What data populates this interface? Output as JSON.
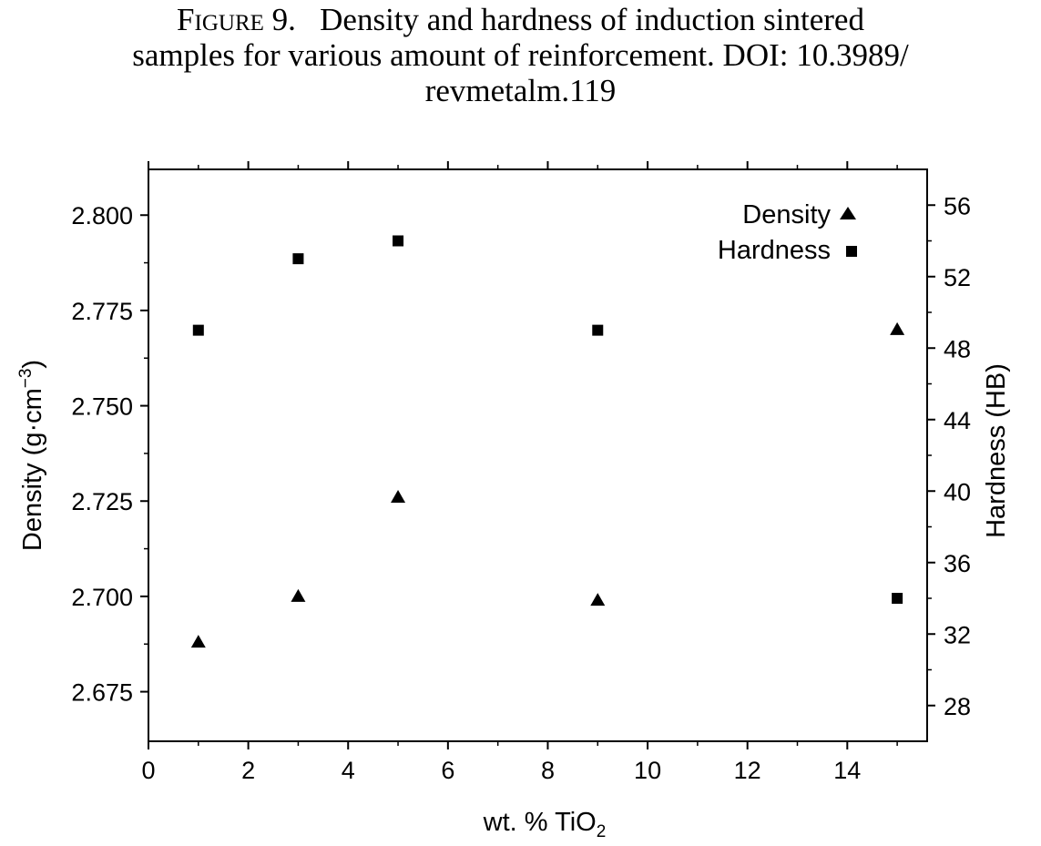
{
  "figure": {
    "label": "Figure 9.",
    "caption_line1": "Density and hardness of induction sintered",
    "caption_line2": "samples for various amount of reinforcement. DOI: 10.3989/",
    "caption_line3": "revmetalm.119"
  },
  "chart_data": {
    "type": "scatter",
    "x_label": "wt. % TiO",
    "x_label_sub": "2",
    "y_label_left": "Density (g·cm",
    "y_label_left_sup": "−3",
    "y_label_left_close": ")",
    "y_label_right": "Hardness (HB)",
    "x_range": [
      0,
      15.6
    ],
    "x_ticks": [
      0,
      2,
      4,
      6,
      8,
      10,
      12,
      14
    ],
    "y_left_range": [
      2.662,
      2.812
    ],
    "y_left_ticks": [
      "2.675",
      "2.700",
      "2.725",
      "2.750",
      "2.775",
      "2.800"
    ],
    "y_right_range": [
      26,
      58
    ],
    "y_right_ticks": [
      28,
      32,
      36,
      40,
      44,
      48,
      52,
      56
    ],
    "grid": false,
    "legend_position": "top-right",
    "series": [
      {
        "name": "Density",
        "marker": "triangle",
        "axis": "left",
        "x": [
          1,
          3,
          5,
          9,
          15
        ],
        "y": [
          2.688,
          2.7,
          2.726,
          2.699,
          2.77
        ]
      },
      {
        "name": "Hardness",
        "marker": "square",
        "axis": "right",
        "x": [
          1,
          3,
          5,
          9,
          15
        ],
        "y": [
          49,
          53,
          54,
          49,
          34
        ]
      }
    ]
  }
}
